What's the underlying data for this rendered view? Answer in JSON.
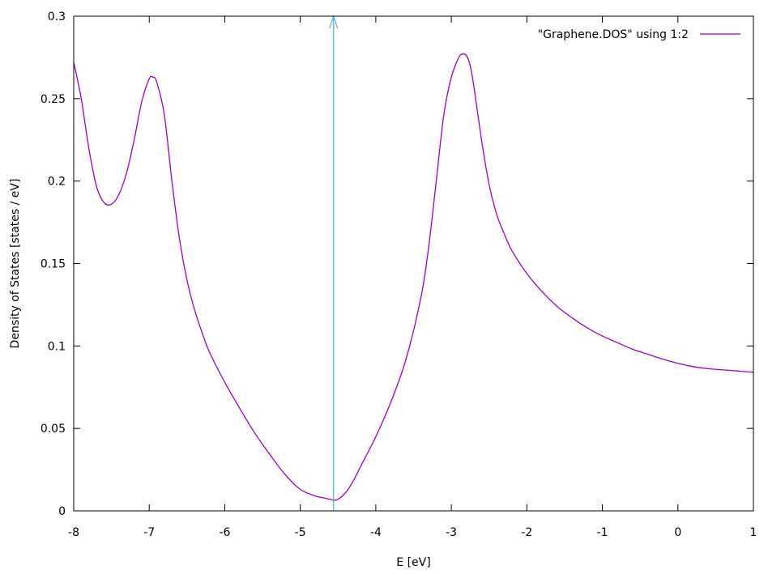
{
  "chart_data": {
    "type": "line",
    "title": "",
    "xlabel": "E [eV]",
    "ylabel": "Density of States [states / eV]",
    "xlim": [
      -8,
      1
    ],
    "ylim": [
      0,
      0.3
    ],
    "xticks": [
      -8,
      -7,
      -6,
      -5,
      -4,
      -3,
      -2,
      -1,
      0,
      1
    ],
    "xtick_labels": [
      "-8",
      "-7",
      "-6",
      "-5",
      "-4",
      "-3",
      "-2",
      "-1",
      "0",
      "1"
    ],
    "yticks": [
      0,
      0.05,
      0.1,
      0.15,
      0.2,
      0.25,
      0.3
    ],
    "ytick_labels": [
      "0",
      "0.05",
      "0.1",
      "0.15",
      "0.2",
      "0.25",
      "0.3"
    ],
    "grid": false,
    "legend_position": "top-right",
    "series": [
      {
        "name": "\"Graphene.DOS\" using 1:2",
        "color": "#9400d3",
        "x": [
          -8.0,
          -7.9,
          -7.8,
          -7.7,
          -7.6,
          -7.5,
          -7.4,
          -7.3,
          -7.2,
          -7.1,
          -7.0,
          -6.95,
          -6.9,
          -6.8,
          -6.7,
          -6.6,
          -6.5,
          -6.4,
          -6.3,
          -6.2,
          -6.0,
          -5.8,
          -5.6,
          -5.4,
          -5.2,
          -5.0,
          -4.8,
          -4.7,
          -4.6,
          -4.55,
          -4.5,
          -4.4,
          -4.3,
          -4.2,
          -4.0,
          -3.8,
          -3.6,
          -3.4,
          -3.3,
          -3.2,
          -3.1,
          -3.0,
          -2.9,
          -2.85,
          -2.8,
          -2.75,
          -2.7,
          -2.6,
          -2.5,
          -2.4,
          -2.3,
          -2.2,
          -2.0,
          -1.8,
          -1.6,
          -1.4,
          -1.2,
          -1.0,
          -0.8,
          -0.6,
          -0.4,
          -0.2,
          0.0,
          0.2,
          0.4,
          0.6,
          0.8,
          1.0
        ],
        "y": [
          0.272,
          0.25,
          0.22,
          0.197,
          0.187,
          0.186,
          0.192,
          0.205,
          0.225,
          0.248,
          0.262,
          0.263,
          0.26,
          0.24,
          0.2,
          0.165,
          0.14,
          0.122,
          0.108,
          0.096,
          0.078,
          0.062,
          0.047,
          0.034,
          0.022,
          0.013,
          0.009,
          0.008,
          0.007,
          0.0065,
          0.007,
          0.011,
          0.018,
          0.027,
          0.045,
          0.066,
          0.092,
          0.13,
          0.16,
          0.2,
          0.24,
          0.263,
          0.275,
          0.277,
          0.276,
          0.27,
          0.257,
          0.225,
          0.198,
          0.18,
          0.168,
          0.158,
          0.144,
          0.133,
          0.124,
          0.117,
          0.111,
          0.106,
          0.102,
          0.098,
          0.095,
          0.092,
          0.0895,
          0.0875,
          0.0862,
          0.0855,
          0.0848,
          0.084
        ]
      }
    ],
    "annotations": [
      {
        "type": "arrow",
        "color": "#56b4e9",
        "x": -4.56,
        "y_from": 0,
        "y_to": 0.3
      }
    ]
  }
}
